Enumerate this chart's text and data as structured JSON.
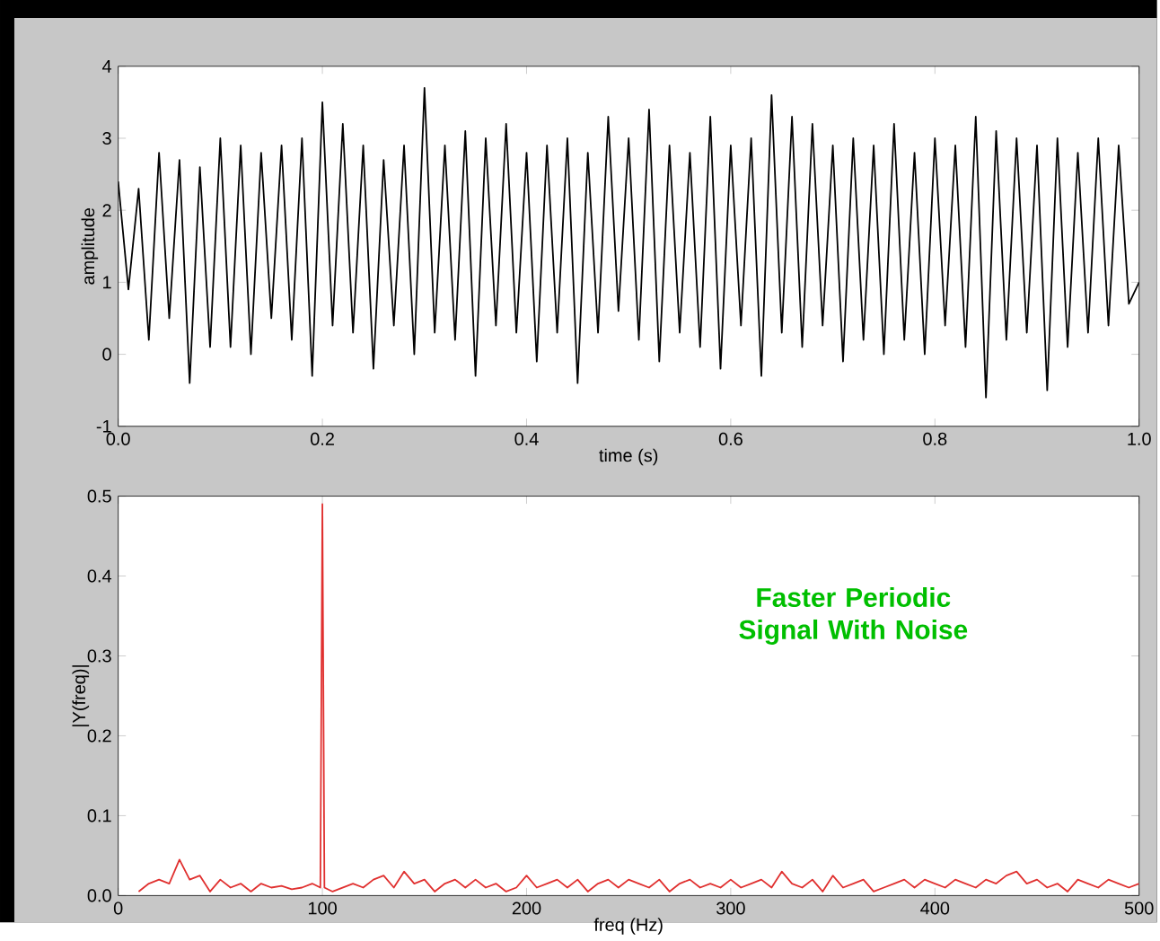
{
  "chart_data": [
    {
      "type": "line",
      "xlabel": "time (s)",
      "ylabel": "amplitude",
      "xlim": [
        0,
        1
      ],
      "ylim": [
        -1,
        4
      ],
      "xticks": [
        {
          "value": 0,
          "label": "0.0"
        },
        {
          "value": 0.2,
          "label": "0.2"
        },
        {
          "value": 0.4,
          "label": "0.4"
        },
        {
          "value": 0.6,
          "label": "0.6"
        },
        {
          "value": 0.8,
          "label": "0.8"
        },
        {
          "value": 1,
          "label": "1.0"
        }
      ],
      "yticks": [
        -1,
        0,
        1,
        2,
        3,
        4
      ],
      "series": [
        {
          "color": "#000000",
          "x": [
            0,
            0.01,
            0.02,
            0.03,
            0.04,
            0.05,
            0.06,
            0.07,
            0.08,
            0.09,
            0.1,
            0.11,
            0.12,
            0.13,
            0.14,
            0.15,
            0.16,
            0.17,
            0.18,
            0.19,
            0.2,
            0.21,
            0.22,
            0.23,
            0.24,
            0.25,
            0.26,
            0.27,
            0.28,
            0.29,
            0.3,
            0.31,
            0.32,
            0.33,
            0.34,
            0.35,
            0.36,
            0.37,
            0.38,
            0.39,
            0.4,
            0.41,
            0.42,
            0.43,
            0.44,
            0.45,
            0.46,
            0.47,
            0.48,
            0.49,
            0.5,
            0.51,
            0.52,
            0.53,
            0.54,
            0.55,
            0.56,
            0.57,
            0.58,
            0.59,
            0.6,
            0.61,
            0.62,
            0.63,
            0.64,
            0.65,
            0.66,
            0.67,
            0.68,
            0.69,
            0.7,
            0.71,
            0.72,
            0.73,
            0.74,
            0.75,
            0.76,
            0.77,
            0.78,
            0.79,
            0.8,
            0.81,
            0.82,
            0.83,
            0.84,
            0.85,
            0.86,
            0.87,
            0.88,
            0.89,
            0.9,
            0.91,
            0.92,
            0.93,
            0.94,
            0.95,
            0.96,
            0.97,
            0.98,
            0.99,
            1
          ],
          "values": [
            2.4,
            0.9,
            2.3,
            0.2,
            2.8,
            0.5,
            2.7,
            -0.4,
            2.6,
            0.1,
            3.0,
            0.1,
            2.9,
            0.0,
            2.8,
            0.5,
            2.9,
            0.2,
            3.0,
            -0.3,
            3.5,
            0.4,
            3.2,
            0.3,
            2.9,
            -0.2,
            2.7,
            0.4,
            2.9,
            0.0,
            3.7,
            0.3,
            2.9,
            0.2,
            3.1,
            -0.3,
            3.0,
            0.4,
            3.2,
            0.3,
            2.8,
            -0.1,
            2.9,
            0.3,
            3.0,
            -0.4,
            2.8,
            0.3,
            3.3,
            0.6,
            3.0,
            0.2,
            3.4,
            -0.1,
            2.9,
            0.3,
            2.8,
            0.1,
            3.3,
            -0.2,
            2.9,
            0.4,
            3.0,
            -0.3,
            3.6,
            0.3,
            3.3,
            0.1,
            3.2,
            0.4,
            2.9,
            -0.1,
            3.0,
            0.2,
            2.9,
            0.0,
            3.2,
            0.2,
            2.8,
            0.0,
            3.0,
            0.4,
            2.9,
            0.1,
            3.3,
            -0.6,
            3.1,
            0.2,
            3.0,
            0.3,
            2.9,
            -0.5,
            3.0,
            0.1,
            2.8,
            0.3,
            3.0,
            0.4,
            2.9,
            0.7,
            1.0
          ]
        }
      ]
    },
    {
      "type": "line",
      "xlabel": "freq (Hz)",
      "ylabel": "|Y(freq)|",
      "xlim": [
        0,
        500
      ],
      "ylim": [
        0,
        0.5
      ],
      "xticks": [
        0,
        100,
        200,
        300,
        400,
        500
      ],
      "yticks": [
        {
          "value": 0,
          "label": "0.0"
        },
        {
          "value": 0.1,
          "label": "0.1"
        },
        {
          "value": 0.2,
          "label": "0.2"
        },
        {
          "value": 0.3,
          "label": "0.3"
        },
        {
          "value": 0.4,
          "label": "0.4"
        },
        {
          "value": 0.5,
          "label": "0.5"
        }
      ],
      "annotations": [
        "Faster Periodic Signal With Noise"
      ],
      "series": [
        {
          "color": "#e0302f",
          "x": [
            10,
            15,
            20,
            25,
            30,
            35,
            40,
            45,
            50,
            55,
            60,
            65,
            70,
            75,
            80,
            85,
            90,
            95,
            99,
            100,
            101,
            105,
            110,
            115,
            120,
            125,
            130,
            135,
            140,
            145,
            150,
            155,
            160,
            165,
            170,
            175,
            180,
            185,
            190,
            195,
            200,
            205,
            210,
            215,
            220,
            225,
            230,
            235,
            240,
            245,
            250,
            255,
            260,
            265,
            270,
            275,
            280,
            285,
            290,
            295,
            300,
            305,
            310,
            315,
            320,
            325,
            330,
            335,
            340,
            345,
            350,
            355,
            360,
            365,
            370,
            375,
            380,
            385,
            390,
            395,
            400,
            405,
            410,
            415,
            420,
            425,
            430,
            435,
            440,
            445,
            450,
            455,
            460,
            465,
            470,
            475,
            480,
            485,
            490,
            495,
            500
          ],
          "values": [
            0.005,
            0.015,
            0.02,
            0.015,
            0.045,
            0.02,
            0.025,
            0.005,
            0.02,
            0.01,
            0.015,
            0.005,
            0.015,
            0.01,
            0.012,
            0.008,
            0.01,
            0.015,
            0.01,
            0.49,
            0.01,
            0.005,
            0.01,
            0.015,
            0.01,
            0.02,
            0.025,
            0.01,
            0.03,
            0.015,
            0.02,
            0.005,
            0.015,
            0.02,
            0.01,
            0.02,
            0.01,
            0.015,
            0.005,
            0.01,
            0.025,
            0.01,
            0.015,
            0.02,
            0.01,
            0.02,
            0.005,
            0.015,
            0.02,
            0.01,
            0.02,
            0.015,
            0.01,
            0.02,
            0.005,
            0.015,
            0.02,
            0.01,
            0.015,
            0.01,
            0.02,
            0.01,
            0.015,
            0.02,
            0.01,
            0.03,
            0.015,
            0.01,
            0.02,
            0.005,
            0.025,
            0.01,
            0.015,
            0.02,
            0.005,
            0.01,
            0.015,
            0.02,
            0.01,
            0.02,
            0.015,
            0.01,
            0.02,
            0.015,
            0.01,
            0.02,
            0.015,
            0.025,
            0.03,
            0.015,
            0.02,
            0.01,
            0.015,
            0.005,
            0.02,
            0.015,
            0.01,
            0.02,
            0.015,
            0.01,
            0.015
          ]
        }
      ]
    }
  ]
}
